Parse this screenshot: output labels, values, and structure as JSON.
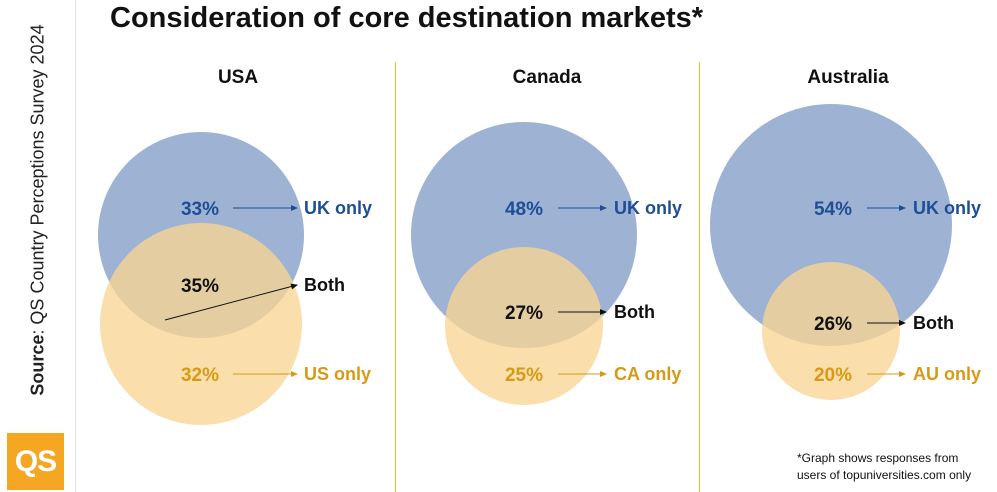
{
  "source_label": "Source",
  "source_text": ": QS Country Perceptions Survey 2024",
  "logo_text": "QS",
  "title": "Consideration of core destination markets*",
  "footnote": [
    "*Graph shows responses from",
    "users of topuniversities.com only"
  ],
  "colors": {
    "uk": "#9eb2d4",
    "other": "#f9d594",
    "uk_text": "#1f4e96",
    "other_text": "#d79a16",
    "both_text": "#111111",
    "divider": "#c9cf3a"
  },
  "chart_data": [
    {
      "type": "venn",
      "title": "USA",
      "sets": [
        {
          "region": "UK only",
          "value": 33,
          "label": "33%"
        },
        {
          "region": "Both",
          "value": 35,
          "label": "35%"
        },
        {
          "region": "US only",
          "value": 32,
          "label": "32%"
        }
      ]
    },
    {
      "type": "venn",
      "title": "Canada",
      "sets": [
        {
          "region": "UK only",
          "value": 48,
          "label": "48%"
        },
        {
          "region": "Both",
          "value": 27,
          "label": "27%"
        },
        {
          "region": "CA only",
          "value": 25,
          "label": "25%"
        }
      ]
    },
    {
      "type": "venn",
      "title": "Australia",
      "sets": [
        {
          "region": "UK only",
          "value": 54,
          "label": "54%"
        },
        {
          "region": "Both",
          "value": 26,
          "label": "26%"
        },
        {
          "region": "AU only",
          "value": 20,
          "label": "20%"
        }
      ]
    }
  ]
}
